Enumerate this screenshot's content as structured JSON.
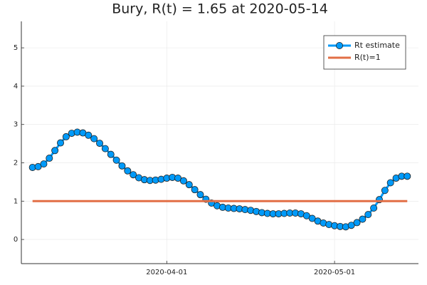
{
  "chart_data": {
    "type": "line",
    "title": "Bury, R(t) = 1.65 at 2020-05-14",
    "xlim": [
      "2020-03-06",
      "2020-05-16"
    ],
    "xticks": [
      "2020-04-01",
      "2020-05-01"
    ],
    "ylim": [
      -0.63,
      5.69
    ],
    "yticks": [
      0,
      1,
      2,
      3,
      4,
      5
    ],
    "grid": true,
    "legend": "top-right",
    "series": [
      {
        "name": "Rt estimate",
        "color": "#009af9",
        "markers": true,
        "x": [
          "2020-03-08",
          "2020-03-09",
          "2020-03-10",
          "2020-03-11",
          "2020-03-12",
          "2020-03-13",
          "2020-03-14",
          "2020-03-15",
          "2020-03-16",
          "2020-03-17",
          "2020-03-18",
          "2020-03-19",
          "2020-03-20",
          "2020-03-21",
          "2020-03-22",
          "2020-03-23",
          "2020-03-24",
          "2020-03-25",
          "2020-03-26",
          "2020-03-27",
          "2020-03-28",
          "2020-03-29",
          "2020-03-30",
          "2020-03-31",
          "2020-04-01",
          "2020-04-02",
          "2020-04-03",
          "2020-04-04",
          "2020-04-05",
          "2020-04-06",
          "2020-04-07",
          "2020-04-08",
          "2020-04-09",
          "2020-04-10",
          "2020-04-11",
          "2020-04-12",
          "2020-04-13",
          "2020-04-14",
          "2020-04-15",
          "2020-04-16",
          "2020-04-17",
          "2020-04-18",
          "2020-04-19",
          "2020-04-20",
          "2020-04-21",
          "2020-04-22",
          "2020-04-23",
          "2020-04-24",
          "2020-04-25",
          "2020-04-26",
          "2020-04-27",
          "2020-04-28",
          "2020-04-29",
          "2020-04-30",
          "2020-05-01",
          "2020-05-02",
          "2020-05-03",
          "2020-05-04",
          "2020-05-05",
          "2020-05-06",
          "2020-05-07",
          "2020-05-08",
          "2020-05-09",
          "2020-05-10",
          "2020-05-11",
          "2020-05-12",
          "2020-05-13",
          "2020-05-14"
        ],
        "values": [
          1.88,
          1.9,
          1.97,
          2.12,
          2.32,
          2.52,
          2.68,
          2.77,
          2.8,
          2.78,
          2.72,
          2.63,
          2.51,
          2.37,
          2.22,
          2.07,
          1.92,
          1.79,
          1.69,
          1.61,
          1.56,
          1.54,
          1.55,
          1.57,
          1.6,
          1.62,
          1.6,
          1.53,
          1.43,
          1.3,
          1.17,
          1.05,
          0.95,
          0.88,
          0.84,
          0.82,
          0.81,
          0.8,
          0.78,
          0.76,
          0.73,
          0.7,
          0.68,
          0.67,
          0.67,
          0.68,
          0.69,
          0.69,
          0.67,
          0.62,
          0.55,
          0.48,
          0.43,
          0.39,
          0.36,
          0.34,
          0.33,
          0.37,
          0.44,
          0.53,
          0.65,
          0.82,
          1.04,
          1.28,
          1.48,
          1.6,
          1.65,
          1.65
        ]
      },
      {
        "name": "R(t)=1",
        "color": "#e26f46",
        "markers": false,
        "x": [
          "2020-03-08",
          "2020-05-14"
        ],
        "values": [
          1,
          1
        ]
      }
    ]
  }
}
